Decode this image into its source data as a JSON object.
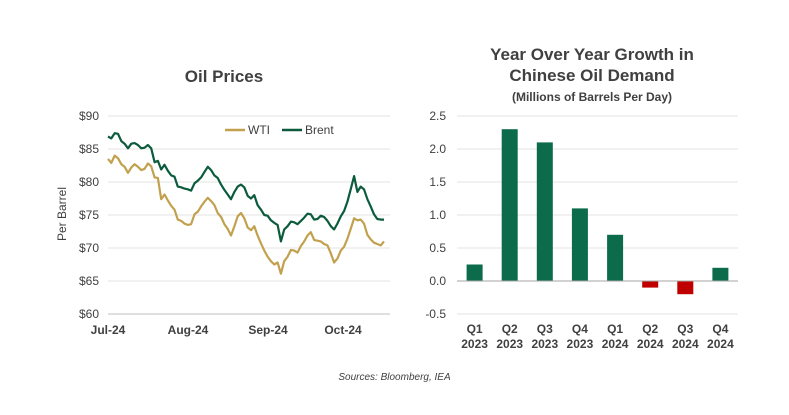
{
  "source_note": "Sources: Bloomberg, IEA",
  "colors": {
    "wti": "#C2A14E",
    "brent": "#0B5B3C",
    "positive_bar": "#0B6B4B",
    "negative_bar": "#C00000",
    "text": "#404040"
  },
  "chart_data": [
    {
      "type": "line",
      "title": "Oil Prices",
      "ylabel": "Per Barrel",
      "ylim": [
        60,
        90
      ],
      "y_ticks": [
        "$60",
        "$65",
        "$70",
        "$75",
        "$80",
        "$85",
        "$90"
      ],
      "x_ticks": [
        "Jul-24",
        "Aug-24",
        "Sep-24",
        "Oct-24"
      ],
      "legend_position": "top-right",
      "series": [
        {
          "name": "WTI",
          "values": [
            83.5,
            82.9,
            84.0,
            83.6,
            82.7,
            82.3,
            81.4,
            82.2,
            82.7,
            82.3,
            81.8,
            82.0,
            82.8,
            82.4,
            80.7,
            80.6,
            77.4,
            78.1,
            77.2,
            76.4,
            75.8,
            74.3,
            74.1,
            73.7,
            73.5,
            73.6,
            75.1,
            75.5,
            76.3,
            77.0,
            77.6,
            77.1,
            76.5,
            75.3,
            74.7,
            73.6,
            72.9,
            71.9,
            73.3,
            74.8,
            75.3,
            74.5,
            73.1,
            72.7,
            73.3,
            71.9,
            70.7,
            69.6,
            68.7,
            68.0,
            67.5,
            67.8,
            66.1,
            68.0,
            68.7,
            69.7,
            69.6,
            69.3,
            70.3,
            71.0,
            71.9,
            72.4,
            71.2,
            71.1,
            71.0,
            70.6,
            70.4,
            69.2,
            67.8,
            68.4,
            69.6,
            70.2,
            71.4,
            72.9,
            74.5,
            74.2,
            74.3,
            73.7,
            72.0,
            71.3,
            70.8,
            70.6,
            70.4,
            71.0
          ],
          "color": "#C2A14E"
        },
        {
          "name": "Brent",
          "values": [
            86.9,
            86.6,
            87.4,
            87.3,
            86.2,
            85.8,
            85.1,
            85.8,
            85.9,
            85.6,
            85.1,
            85.2,
            85.6,
            85.1,
            83.0,
            83.2,
            81.9,
            82.6,
            81.7,
            81.0,
            80.8,
            79.3,
            79.2,
            79.0,
            78.9,
            78.7,
            79.8,
            80.2,
            80.7,
            81.5,
            82.3,
            81.8,
            81.0,
            80.6,
            79.6,
            78.8,
            78.1,
            77.4,
            78.5,
            79.3,
            79.6,
            79.2,
            77.9,
            77.5,
            78.0,
            76.5,
            75.8,
            75.0,
            74.9,
            74.2,
            73.8,
            73.5,
            71.0,
            72.8,
            73.3,
            74.0,
            73.9,
            73.6,
            74.1,
            74.6,
            75.2,
            75.1,
            74.3,
            74.4,
            74.9,
            74.7,
            74.1,
            73.3,
            72.8,
            73.7,
            74.8,
            75.6,
            77.0,
            78.9,
            80.9,
            78.5,
            79.3,
            78.9,
            77.4,
            76.3,
            75.1,
            74.4,
            74.3,
            74.3
          ],
          "color": "#0B5B3C"
        }
      ]
    },
    {
      "type": "bar",
      "title": "Year Over Year Growth in Chinese Oil Demand",
      "title_lines": [
        "Year Over Year Growth in",
        "Chinese Oil Demand"
      ],
      "subtitle": "(Millions of Barrels Per Day)",
      "ylim": [
        -0.5,
        2.5
      ],
      "y_ticks": [
        "-0.5",
        "0.0",
        "0.5",
        "1.0",
        "1.5",
        "2.0",
        "2.5"
      ],
      "categories": [
        {
          "quarter": "Q1",
          "year": "2023"
        },
        {
          "quarter": "Q2",
          "year": "2023"
        },
        {
          "quarter": "Q3",
          "year": "2023"
        },
        {
          "quarter": "Q4",
          "year": "2023"
        },
        {
          "quarter": "Q1",
          "year": "2024"
        },
        {
          "quarter": "Q2",
          "year": "2024"
        },
        {
          "quarter": "Q3",
          "year": "2024"
        },
        {
          "quarter": "Q4",
          "year": "2024"
        }
      ],
      "values": [
        0.25,
        2.3,
        2.1,
        1.1,
        0.7,
        -0.1,
        -0.2,
        0.2
      ]
    }
  ]
}
